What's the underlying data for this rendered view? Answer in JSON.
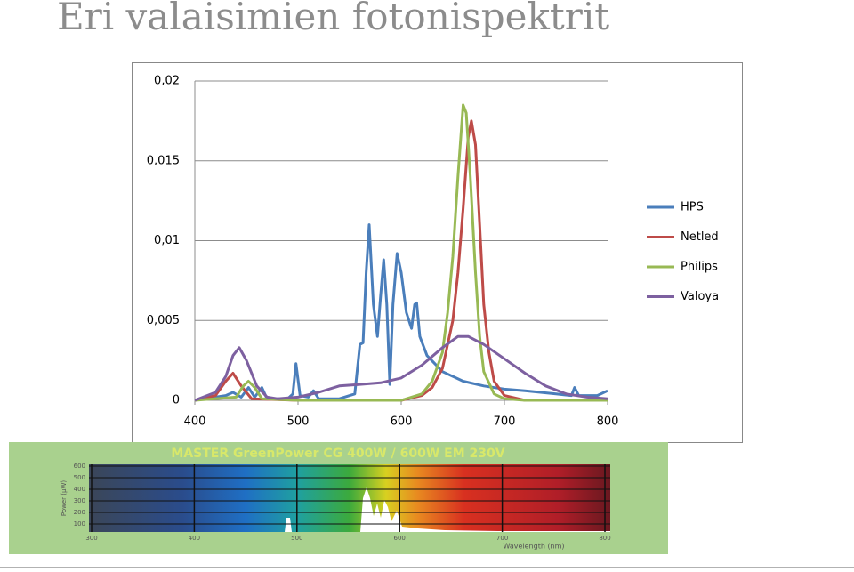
{
  "title": "Eri valaisimien fotonispektrit",
  "chart_data": {
    "type": "line",
    "xlim": [
      400,
      800
    ],
    "xticks": [
      400,
      500,
      600,
      700,
      800
    ],
    "ylim": [
      0,
      0.02
    ],
    "yticks": [
      0,
      {
        "value": 0.005,
        "label": "0,005"
      },
      {
        "value": 0.01,
        "label": "0,01"
      },
      {
        "value": 0.015,
        "label": "0,015"
      },
      {
        "value": 0.02,
        "label": "0,02"
      }
    ],
    "grid": true,
    "legend": "right",
    "series": [
      {
        "name": "HPS",
        "color": "#4a7ebb",
        "x": [
          400,
          420,
          430,
          437,
          445,
          452,
          458,
          465,
          470,
          490,
          495,
          498,
          502,
          510,
          515,
          520,
          540,
          555,
          560,
          563,
          566,
          569,
          573,
          577,
          580,
          583,
          586,
          589,
          592,
          596,
          600,
          605,
          610,
          613,
          615,
          618,
          625,
          640,
          660,
          680,
          700,
          720,
          750,
          765,
          768,
          772,
          790,
          800
        ],
        "values": [
          0,
          0.0002,
          0.0003,
          0.0005,
          0.0002,
          0.0008,
          0.0002,
          0.0008,
          0.0001,
          0.0001,
          0.0004,
          0.0023,
          0.0003,
          0.0002,
          0.0006,
          0.0001,
          0.0001,
          0.0004,
          0.0035,
          0.0036,
          0.008,
          0.011,
          0.006,
          0.004,
          0.0065,
          0.0088,
          0.006,
          0.001,
          0.006,
          0.0092,
          0.008,
          0.0055,
          0.0045,
          0.006,
          0.0061,
          0.004,
          0.0028,
          0.0018,
          0.0012,
          0.0009,
          0.0007,
          0.0006,
          0.0004,
          0.0003,
          0.0008,
          0.0003,
          0.0003,
          0.0006
        ]
      },
      {
        "name": "Netled",
        "color": "#be4b48",
        "x": [
          400,
          420,
          430,
          437,
          445,
          455,
          500,
          600,
          620,
          630,
          640,
          650,
          655,
          660,
          665,
          668,
          672,
          676,
          680,
          685,
          690,
          700,
          720,
          800
        ],
        "values": [
          0,
          0.0003,
          0.0012,
          0.0017,
          0.0009,
          0.0001,
          0,
          0,
          0.0003,
          0.0008,
          0.002,
          0.005,
          0.008,
          0.012,
          0.0165,
          0.0175,
          0.016,
          0.011,
          0.006,
          0.003,
          0.0012,
          0.0003,
          0,
          0
        ]
      },
      {
        "name": "Philips",
        "color": "#98b954",
        "x": [
          400,
          440,
          447,
          452,
          458,
          465,
          500,
          600,
          620,
          630,
          640,
          645,
          650,
          655,
          660,
          663,
          667,
          672,
          676,
          680,
          690,
          700,
          720,
          800
        ],
        "values": [
          0,
          0.0002,
          0.0009,
          0.0012,
          0.0008,
          0.0001,
          0,
          0,
          0.0004,
          0.0012,
          0.003,
          0.0055,
          0.009,
          0.014,
          0.0185,
          0.018,
          0.014,
          0.008,
          0.004,
          0.0018,
          0.0004,
          0.0001,
          0,
          0
        ]
      },
      {
        "name": "Valoya",
        "color": "#7d60a0",
        "x": [
          400,
          420,
          430,
          437,
          443,
          450,
          460,
          470,
          480,
          500,
          520,
          540,
          560,
          580,
          600,
          620,
          640,
          655,
          665,
          680,
          700,
          720,
          740,
          760,
          780,
          800
        ],
        "values": [
          0,
          0.0005,
          0.0015,
          0.0028,
          0.0033,
          0.0025,
          0.0009,
          0.0002,
          0.0001,
          0.0002,
          0.0005,
          0.0009,
          0.001,
          0.0011,
          0.0014,
          0.0022,
          0.0033,
          0.004,
          0.004,
          0.0035,
          0.0026,
          0.0017,
          0.0009,
          0.0004,
          0.0002,
          0.0001
        ]
      }
    ]
  },
  "spectrum_image": {
    "title": "MASTER GreenPower CG 400W / 600W EM 230V",
    "y_axis_label": "Power (µW)",
    "x_axis_label": "Wavelength (nm)",
    "y_labels": [
      "600",
      "500",
      "400",
      "300",
      "200",
      "100"
    ],
    "x_labels": [
      "300",
      "400",
      "500",
      "600",
      "700",
      "800"
    ]
  }
}
